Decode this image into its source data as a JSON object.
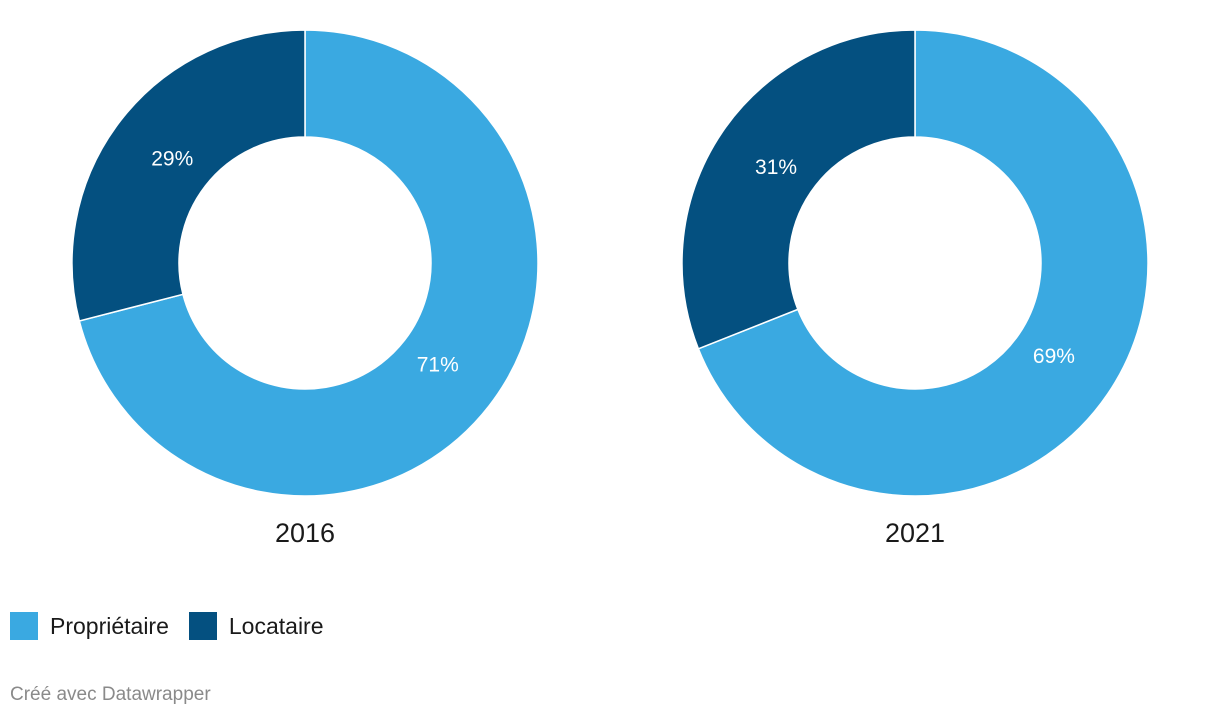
{
  "chart_data": {
    "type": "pie",
    "variant": "donut",
    "series": [
      {
        "name": "Propriétaire",
        "color": "#3aa9e1"
      },
      {
        "name": "Locataire",
        "color": "#045080"
      }
    ],
    "charts": [
      {
        "title": "2016",
        "values": [
          71,
          29
        ],
        "labels": [
          "71%",
          "29%"
        ]
      },
      {
        "title": "2021",
        "values": [
          69,
          31
        ],
        "labels": [
          "69%",
          "31%"
        ]
      }
    ]
  },
  "legend": {
    "items": [
      {
        "label": "Propriétaire",
        "color": "#3aa9e1"
      },
      {
        "label": "Locataire",
        "color": "#045080"
      }
    ]
  },
  "footer": {
    "credit": "Créé avec Datawrapper"
  }
}
